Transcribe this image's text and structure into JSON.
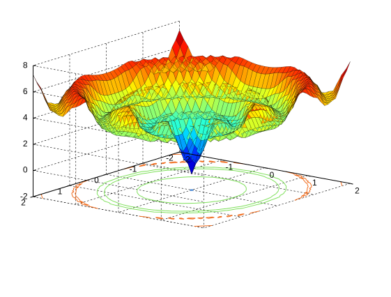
{
  "chart_data": {
    "type": "surfc",
    "title": "",
    "xlabel": "",
    "ylabel": "",
    "zlabel": "",
    "colormap": "jet",
    "grid": "on",
    "box": "on",
    "xlim": [
      -2,
      2
    ],
    "ylim": [
      -2,
      2
    ],
    "zlim": [
      -2,
      8
    ],
    "xticks": [
      -2,
      -1,
      0,
      1,
      2
    ],
    "yticks": [
      -2,
      -1,
      0,
      1,
      2
    ],
    "zticks": [
      -2,
      0,
      2,
      4,
      6,
      8
    ],
    "x_tick_labels": [
      "-2",
      "-1",
      "0",
      "1",
      "2"
    ],
    "y_tick_labels": [
      "-2",
      "-1",
      "0",
      "1",
      "2"
    ],
    "z_tick_labels": [
      "-2",
      "0",
      "2",
      "4",
      "6",
      "8"
    ],
    "surface_samples": {
      "description_of_shape": "radially symmetric rippled surface, deep minimum at center",
      "r": [
        0.0,
        0.15,
        0.3,
        0.45,
        0.6,
        0.75,
        0.9,
        1.05,
        1.2,
        1.35,
        1.5,
        1.65,
        1.8,
        1.95,
        2.1,
        2.25,
        2.4,
        2.55,
        2.7,
        2.83
      ],
      "z": [
        -0.8,
        0.4,
        2.0,
        3.4,
        3.4,
        2.6,
        2.9,
        4.1,
        5.0,
        4.6,
        3.6,
        3.3,
        4.3,
        5.6,
        6.1,
        5.4,
        4.5,
        4.8,
        6.2,
        7.3
      ]
    },
    "contour_levels": [
      -0.5,
      3.5,
      6.0
    ],
    "contour_colors": [
      "#1f6fd0",
      "#7ee05a",
      "#f06a1a"
    ],
    "view": {
      "azimuth_deg": -37.5,
      "elevation_deg": 30
    }
  }
}
